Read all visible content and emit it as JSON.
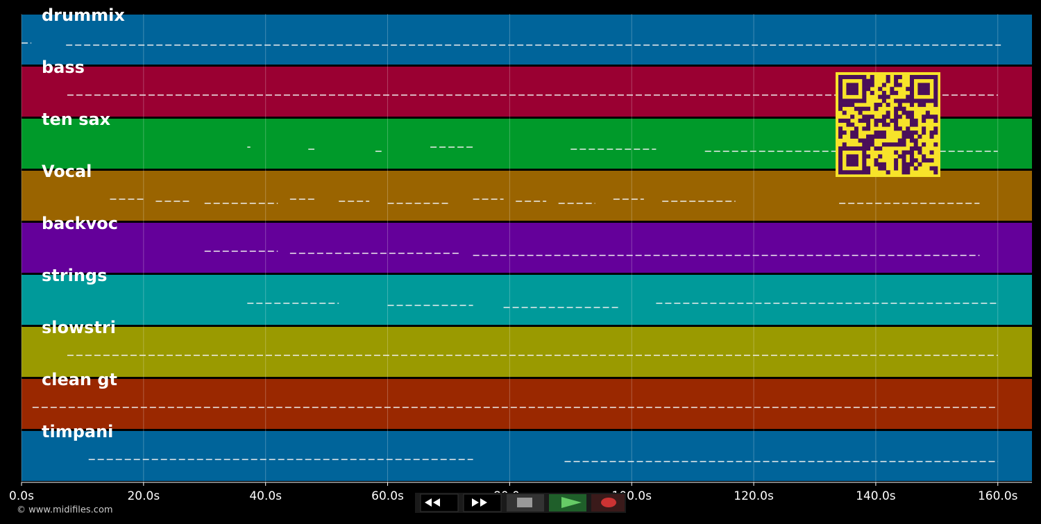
{
  "timeline": {
    "xlim": [
      0,
      165.6
    ],
    "xticks": [
      {
        "value": 0,
        "label": "0.0s"
      },
      {
        "value": 20,
        "label": "20.0s"
      },
      {
        "value": 40,
        "label": "40.0s"
      },
      {
        "value": 60,
        "label": "60.0s"
      },
      {
        "value": 80,
        "label": "80.0s"
      },
      {
        "value": 100,
        "label": "100.0s"
      },
      {
        "value": 120,
        "label": "120.0s"
      },
      {
        "value": 140,
        "label": "140.0s"
      },
      {
        "value": 160,
        "label": "160.0s"
      }
    ],
    "grid": true,
    "tracks": [
      {
        "name": "drummix",
        "color": "#00649a",
        "notes": [
          [
            0,
            1.6
          ],
          [
            7.3,
            160.5
          ]
        ]
      },
      {
        "name": "bass",
        "color": "#9a0032",
        "notes": [
          [
            7.5,
            160
          ]
        ]
      },
      {
        "name": "ten sax",
        "color": "#009a2a",
        "notes": [
          [
            37,
            37.5
          ],
          [
            47,
            48
          ],
          [
            58,
            59
          ],
          [
            67,
            74
          ],
          [
            90,
            104
          ],
          [
            112,
            160
          ]
        ]
      },
      {
        "name": "Vocal",
        "color": "#9a6400",
        "notes": [
          [
            14.5,
            20
          ],
          [
            22,
            27.5
          ],
          [
            30,
            42
          ],
          [
            44,
            48
          ],
          [
            52,
            57
          ],
          [
            60,
            70
          ],
          [
            74,
            79
          ],
          [
            81,
            86
          ],
          [
            88,
            94
          ],
          [
            97,
            102
          ],
          [
            105,
            117
          ],
          [
            134,
            157
          ]
        ]
      },
      {
        "name": "backvoc",
        "color": "#64009a",
        "notes": [
          [
            30,
            42
          ],
          [
            44,
            72
          ],
          [
            74,
            157
          ]
        ]
      },
      {
        "name": "strings",
        "color": "#009a9a",
        "notes": [
          [
            37,
            52
          ],
          [
            60,
            74
          ],
          [
            79,
            98
          ],
          [
            104,
            160
          ]
        ]
      },
      {
        "name": "slowstri",
        "color": "#9a9a00",
        "notes": [
          [
            7.5,
            160
          ]
        ]
      },
      {
        "name": "clean gt",
        "color": "#9a2800",
        "notes": [
          [
            1.8,
            160
          ]
        ]
      },
      {
        "name": "timpani",
        "color": "#00649a",
        "notes": [
          [
            11,
            74
          ],
          [
            89,
            160
          ]
        ]
      }
    ]
  },
  "footer": "© www.midifiles.com"
}
